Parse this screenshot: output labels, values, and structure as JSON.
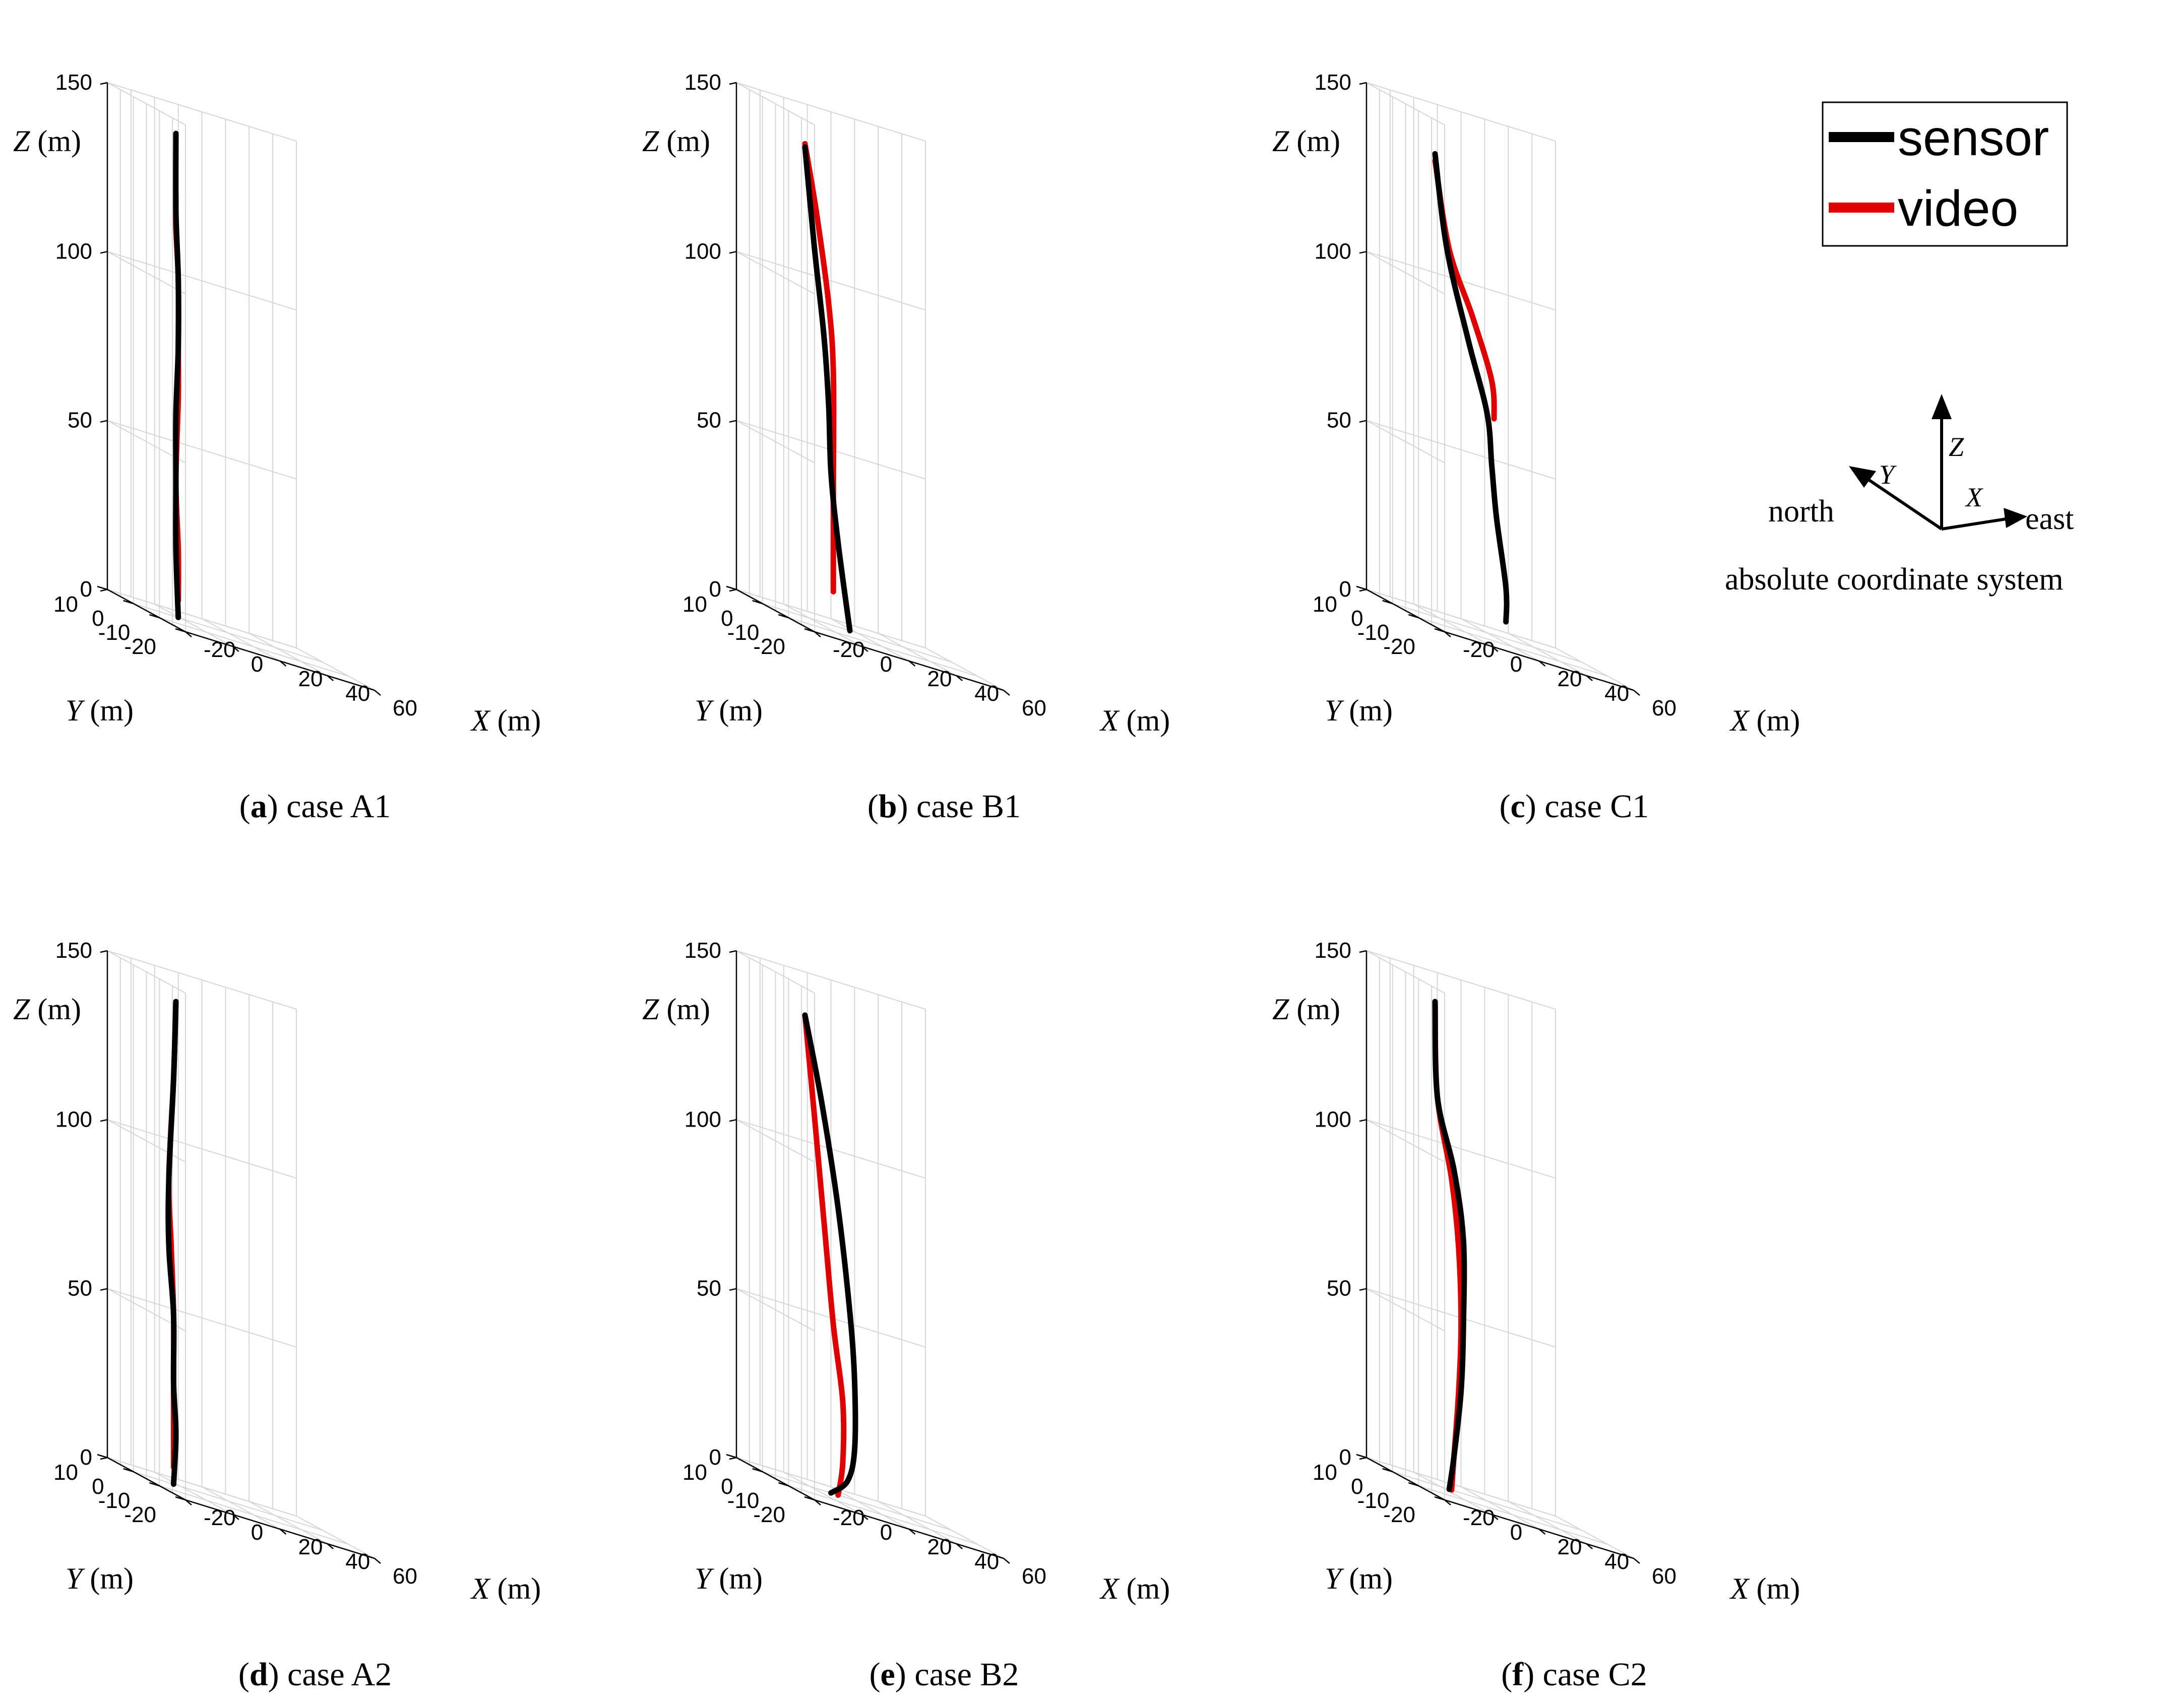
{
  "figure": {
    "legend": {
      "entries": [
        {
          "name": "sensor",
          "color": "#000000"
        },
        {
          "name": "video",
          "color": "#e00000"
        }
      ]
    },
    "coordinate_system": {
      "title": "absolute coordinate system",
      "north": "north",
      "east": "east",
      "x": "X",
      "y": "Y",
      "z": "Z"
    }
  },
  "chart_data": [
    {
      "type": "line3d",
      "panel": "a",
      "case": "case A1",
      "xlabel": "X (m)",
      "ylabel": "Y (m)",
      "zlabel": "Z (m)",
      "xlim": [
        -20,
        60
      ],
      "ylim": [
        -20,
        10
      ],
      "zlim": [
        0,
        150
      ],
      "xticks": [
        "-20",
        "0",
        "20",
        "40",
        "60"
      ],
      "yticks": [
        "10",
        "0",
        "-10",
        "-20"
      ],
      "zticks": [
        "150",
        "100",
        "50",
        "0"
      ],
      "series": [
        {
          "name": "sensor",
          "x": [
            -2,
            -2,
            -1,
            -1,
            -2,
            -2,
            -2,
            -1
          ],
          "y": [
            0,
            0,
            0,
            0,
            0,
            0,
            0,
            0
          ],
          "z": [
            143,
            120,
            100,
            80,
            60,
            40,
            20,
            0
          ]
        },
        {
          "name": "video",
          "x": [
            -2,
            -2,
            -1,
            -1,
            -1,
            -2,
            -1,
            -1
          ],
          "y": [
            0,
            0,
            0,
            0,
            0,
            0,
            0,
            0
          ],
          "z": [
            125,
            115,
            100,
            80,
            65,
            40,
            20,
            5
          ]
        }
      ]
    },
    {
      "type": "line3d",
      "panel": "b",
      "case": "case B1",
      "xlabel": "X (m)",
      "ylabel": "Y (m)",
      "zlabel": "Z (m)",
      "xlim": [
        -20,
        60
      ],
      "ylim": [
        -20,
        10
      ],
      "zlim": [
        0,
        150
      ],
      "xticks": [
        "-20",
        "0",
        "20",
        "40",
        "60"
      ],
      "yticks": [
        "10",
        "0",
        "-10",
        "-20"
      ],
      "zticks": [
        "150",
        "100",
        "50",
        "0"
      ],
      "series": [
        {
          "name": "sensor",
          "x": [
            -2,
            2,
            6,
            8,
            9,
            12,
            17
          ],
          "y": [
            0,
            0,
            0,
            0,
            0,
            0,
            0
          ],
          "z": [
            139,
            110,
            85,
            65,
            45,
            25,
            0
          ]
        },
        {
          "name": "video",
          "x": [
            -2,
            3,
            8,
            10,
            10,
            10
          ],
          "y": [
            0,
            0,
            0,
            0,
            0,
            0
          ],
          "z": [
            140,
            120,
            95,
            75,
            40,
            10
          ]
        }
      ]
    },
    {
      "type": "line3d",
      "panel": "c",
      "case": "case C1",
      "xlabel": "X (m)",
      "ylabel": "Y (m)",
      "zlabel": "Z (m)",
      "xlim": [
        -20,
        60
      ],
      "ylim": [
        -20,
        10
      ],
      "zlim": [
        0,
        150
      ],
      "xticks": [
        "-20",
        "0",
        "20",
        "40",
        "60"
      ],
      "yticks": [
        "10",
        "0",
        "-10",
        "-20"
      ],
      "zticks": [
        "150",
        "100",
        "50",
        "0"
      ],
      "series": [
        {
          "name": "sensor",
          "x": [
            -2,
            3,
            12,
            20,
            22,
            24,
            28,
            28
          ],
          "y": [
            0,
            0,
            0,
            0,
            0,
            0,
            0,
            0
          ],
          "z": [
            137,
            110,
            85,
            65,
            50,
            35,
            15,
            5
          ]
        },
        {
          "name": "video",
          "x": [
            -2,
            4,
            14,
            22,
            23
          ],
          "y": [
            0,
            0,
            0,
            0,
            0
          ],
          "z": [
            135,
            110,
            92,
            75,
            64
          ]
        }
      ]
    },
    {
      "type": "line3d",
      "panel": "d",
      "case": "case A2",
      "xlabel": "X (m)",
      "ylabel": "Y (m)",
      "zlabel": "Z (m)",
      "xlim": [
        -20,
        60
      ],
      "ylim": [
        -20,
        10
      ],
      "zlim": [
        0,
        150
      ],
      "xticks": [
        "-20",
        "0",
        "20",
        "40",
        "60"
      ],
      "yticks": [
        "10",
        "0",
        "-10",
        "-20"
      ],
      "zticks": [
        "150",
        "100",
        "50",
        "0"
      ],
      "series": [
        {
          "name": "sensor",
          "x": [
            -2,
            -3,
            -5,
            -5,
            -3,
            -3,
            -2,
            -3
          ],
          "y": [
            0,
            0,
            0,
            0,
            0,
            0,
            0,
            0
          ],
          "z": [
            143,
            120,
            90,
            70,
            50,
            30,
            15,
            0
          ]
        },
        {
          "name": "video",
          "x": [
            -2,
            -3,
            -5,
            -4,
            -3,
            -3,
            -3
          ],
          "y": [
            0,
            0,
            0,
            0,
            0,
            0,
            0
          ],
          "z": [
            143,
            120,
            90,
            70,
            50,
            30,
            5
          ]
        }
      ]
    },
    {
      "type": "line3d",
      "panel": "e",
      "case": "case B2",
      "xlabel": "X (m)",
      "ylabel": "Y (m)",
      "zlabel": "Z (m)",
      "xlim": [
        -20,
        60
      ],
      "ylim": [
        -20,
        10
      ],
      "zlim": [
        0,
        150
      ],
      "xticks": [
        "-20",
        "0",
        "20",
        "40",
        "60"
      ],
      "yticks": [
        "10",
        "0",
        "-10",
        "-20"
      ],
      "zticks": [
        "150",
        "100",
        "50",
        "0"
      ],
      "series": [
        {
          "name": "sensor",
          "x": [
            -2,
            5,
            12,
            17,
            19,
            19,
            16,
            9
          ],
          "y": [
            0,
            0,
            0,
            0,
            0,
            0,
            0,
            0
          ],
          "z": [
            139,
            115,
            85,
            55,
            35,
            15,
            5,
            0
          ]
        },
        {
          "name": "video",
          "x": [
            -2,
            2,
            6,
            10,
            14,
            14,
            12
          ],
          "y": [
            0,
            0,
            0,
            0,
            0,
            0,
            0
          ],
          "z": [
            139,
            110,
            80,
            50,
            28,
            10,
            0
          ]
        }
      ]
    },
    {
      "type": "line3d",
      "panel": "f",
      "case": "case C2",
      "xlabel": "X (m)",
      "ylabel": "Y (m)",
      "zlabel": "Z (m)",
      "xlim": [
        -20,
        60
      ],
      "ylim": [
        -20,
        10
      ],
      "zlim": [
        0,
        150
      ],
      "xticks": [
        "-20",
        "0",
        "20",
        "40",
        "60"
      ],
      "yticks": [
        "10",
        "0",
        "-10",
        "-20"
      ],
      "zticks": [
        "150",
        "100",
        "50",
        "0"
      ],
      "series": [
        {
          "name": "sensor",
          "x": [
            -2,
            -1,
            6,
            10,
            10,
            9,
            6,
            4
          ],
          "y": [
            0,
            0,
            0,
            0,
            0,
            0,
            0,
            0
          ],
          "z": [
            143,
            115,
            95,
            75,
            50,
            30,
            10,
            0
          ]
        },
        {
          "name": "video",
          "x": [
            -2,
            -1,
            5,
            8,
            9,
            8,
            6,
            5
          ],
          "y": [
            0,
            0,
            0,
            0,
            0,
            0,
            0,
            0
          ],
          "z": [
            143,
            115,
            92,
            72,
            50,
            30,
            10,
            0
          ]
        }
      ]
    }
  ]
}
